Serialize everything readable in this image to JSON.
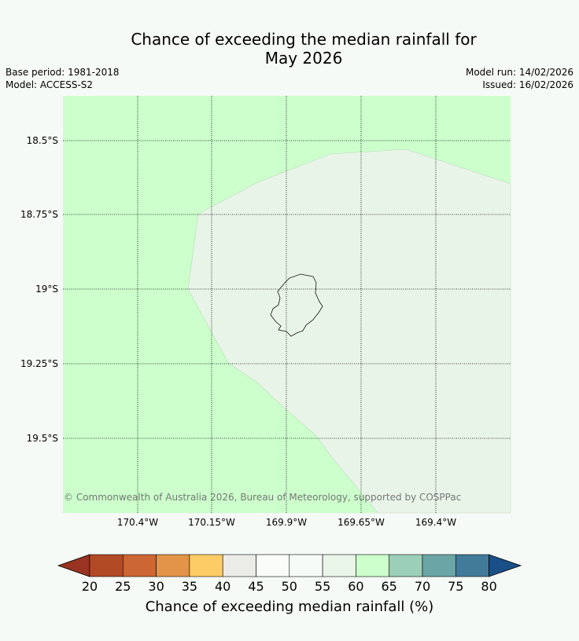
{
  "title": {
    "line1": "Chance of exceeding the median rainfall for",
    "line2": "May 2026"
  },
  "meta": {
    "base_period": "Base period: 1981-2018",
    "model": "Model: ACCESS-S2",
    "model_run": "Model run: 14/02/2026",
    "issued": "Issued: 16/02/2026"
  },
  "map": {
    "lat_labels": [
      "18.5°S",
      "18.75°S",
      "19°S",
      "19.25°S",
      "19.5°S"
    ],
    "lon_labels": [
      "170.4°W",
      "170.15°W",
      "169.9°W",
      "169.65°W",
      "169.4°W"
    ],
    "copyright": "© Commonwealth of Australia 2026, Bureau of Meteorology, supported by COSPPac",
    "colors": {
      "above_60": "#ccffcc",
      "55_60": "#e9f4e9"
    }
  },
  "colorbar": {
    "ticks": [
      "20",
      "25",
      "30",
      "35",
      "40",
      "45",
      "50",
      "55",
      "60",
      "65",
      "70",
      "75",
      "80"
    ],
    "colors": [
      "#b34a26",
      "#cc6633",
      "#e39448",
      "#fecc66",
      "#ebebe8",
      "#f9fcf9",
      "#f7fbf7",
      "#eaf5ea",
      "#ccffcc",
      "#9ccfb8",
      "#6ba5a6",
      "#427a99"
    ],
    "under_color": "#993322",
    "over_color": "#1a4f87",
    "label": "Chance of exceeding median rainfall (%)"
  }
}
